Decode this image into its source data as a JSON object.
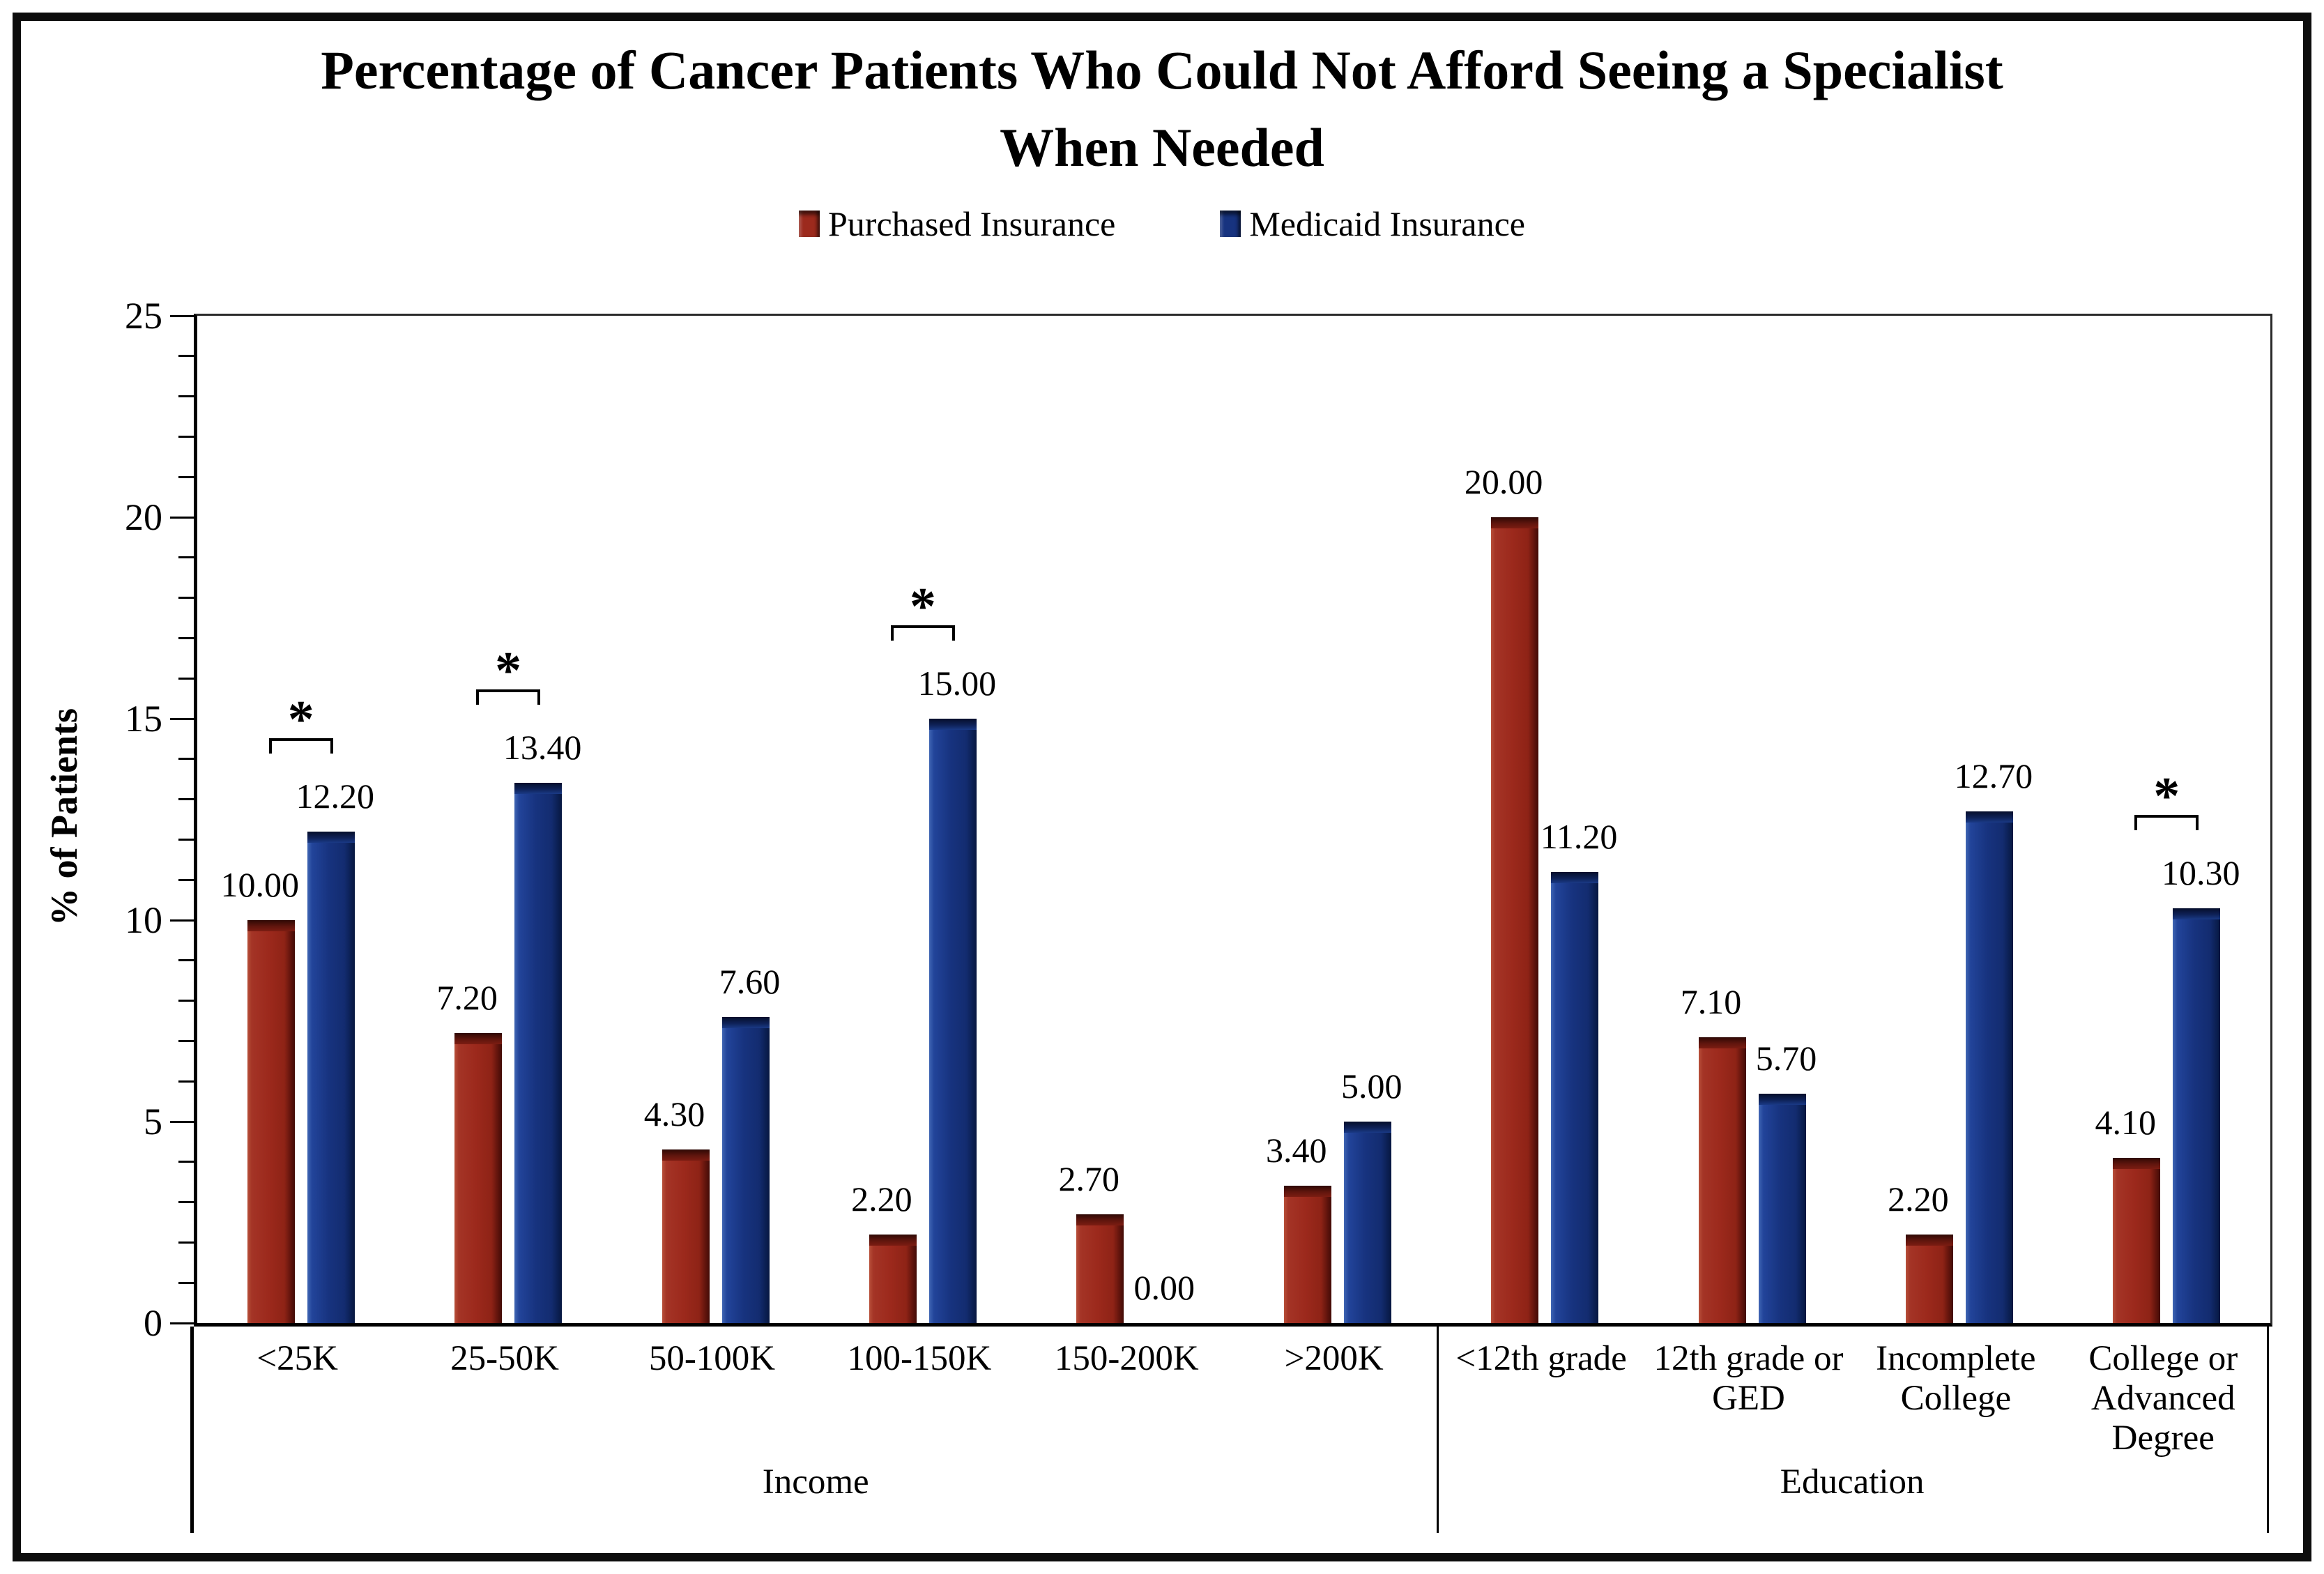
{
  "title": "Percentage of Cancer Patients Who Could Not Afford Seeing a Specialist\nWhen Needed",
  "legend": {
    "items": [
      {
        "label": "Purchased Insurance",
        "color": "#9c2a1d"
      },
      {
        "label": "Medicaid Insurance",
        "color": "#17337f"
      }
    ]
  },
  "chart_data": {
    "type": "bar",
    "title": "Percentage of Cancer Patients Who Could Not Afford Seeing a Specialist When Needed",
    "ylabel": "% of Patients",
    "ylim": [
      0,
      25
    ],
    "ytick_major": 5,
    "ytick_minor": 1,
    "grid": false,
    "legend_position": "top",
    "value_label_decimals": 2,
    "sections": [
      {
        "label": "Income",
        "categories": [
          "<25K",
          "25-50K",
          "50-100K",
          "100-150K",
          "150-200K",
          ">200K"
        ]
      },
      {
        "label": "Education",
        "categories": [
          "<12th grade",
          "12th grade or\nGED",
          "Incomplete\nCollege",
          "College or\nAdvanced\nDegree"
        ]
      }
    ],
    "series": [
      {
        "name": "Purchased Insurance",
        "color": "#9c2a1d",
        "values": [
          10.0,
          7.2,
          4.3,
          2.2,
          2.7,
          3.4,
          20.0,
          7.1,
          2.2,
          4.1
        ]
      },
      {
        "name": "Medicaid Insurance",
        "color": "#17337f",
        "values": [
          12.2,
          13.4,
          7.6,
          15.0,
          0.0,
          5.0,
          11.2,
          5.7,
          12.7,
          10.3
        ]
      }
    ],
    "significance": {
      "symbol": "*",
      "group_indices": [
        0,
        1,
        3,
        9
      ]
    }
  }
}
